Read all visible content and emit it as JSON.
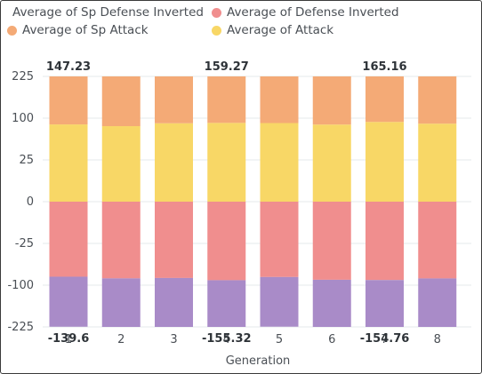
{
  "chart_data": {
    "type": "bar",
    "stacked": true,
    "categories": [
      "1",
      "2",
      "3",
      "4",
      "5",
      "6",
      "7",
      "8"
    ],
    "series": [
      {
        "name": "Average of Sp Defense Inverted",
        "color": "#a98bc8",
        "values": [
          -139.6,
          -142.7,
          -141.1,
          -155.32,
          -138.8,
          -144.9,
          -154.76,
          -140.7
        ],
        "stack": "negative"
      },
      {
        "name": "Average of Defense Inverted",
        "color": "#f08e8e",
        "values": [
          -84.8,
          -87.8,
          -87.1,
          -91.1,
          -85.4,
          -90.3,
          -90.8,
          -87.9
        ],
        "stack": "negative"
      },
      {
        "name": "Average of Sp Attack",
        "color": "#f4aa76",
        "values": [
          147.23,
          141.0,
          148.0,
          159.27,
          152.4,
          150.6,
          165.16,
          148.3
        ],
        "stack": "positive"
      },
      {
        "name": "Average of Attack",
        "color": "#f8d766",
        "values": [
          88.7,
          85.6,
          90.8,
          91.5,
          91.2,
          88.5,
          93.2,
          90.1
        ],
        "stack": "positive"
      }
    ],
    "legend_order": [
      0,
      1,
      2,
      3
    ],
    "yticks": [
      "225",
      "100",
      "25",
      "0",
      "-25",
      "-100",
      "-225"
    ],
    "ytick_values": [
      225,
      100,
      25,
      0,
      -25,
      -100,
      -225
    ],
    "yaxis_scale": "custom piecewise",
    "data_labels": [
      {
        "category": "1",
        "text": "147.23",
        "position": "top"
      },
      {
        "category": "4",
        "text": "159.27",
        "position": "top"
      },
      {
        "category": "7",
        "text": "165.16",
        "position": "top"
      },
      {
        "category": "1",
        "text": "-139.6",
        "position": "bottom"
      },
      {
        "category": "4",
        "text": "-155.32",
        "position": "bottom"
      },
      {
        "category": "7",
        "text": "-154.76",
        "position": "bottom"
      }
    ],
    "xlabel": "Generation",
    "ylabel": "",
    "ylim": [
      -225,
      225
    ],
    "grid": "horizontal",
    "legend_position": "top-left"
  }
}
